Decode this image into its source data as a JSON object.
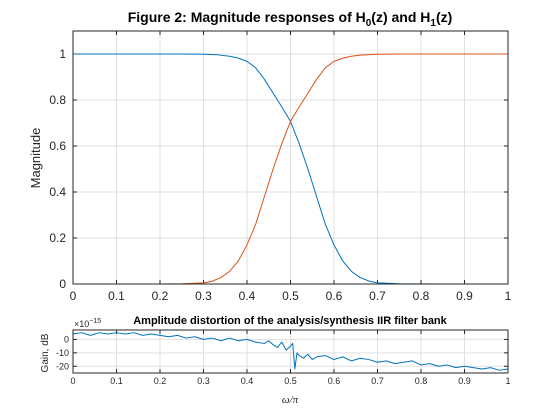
{
  "chart_data": [
    {
      "type": "line",
      "title": "Figure 2: Magnitude responses of H0(z) and H1(z)",
      "title_parts": {
        "a": "Figure 2: Magnitude responses of H",
        "sub0": "0",
        "b": "(z) and H",
        "sub1": "1",
        "c": "(z)"
      },
      "xlabel": "",
      "ylabel": "Magnitude",
      "xlim": [
        0,
        1
      ],
      "ylim": [
        0,
        1.1
      ],
      "grid": true,
      "xticks": [
        "0",
        "0.1",
        "0.2",
        "0.3",
        "0.4",
        "0.5",
        "0.6",
        "0.7",
        "0.8",
        "0.9",
        "1"
      ],
      "yticks": [
        "0",
        "0.2",
        "0.4",
        "0.6",
        "0.8",
        "1"
      ],
      "series": [
        {
          "color": "#0072bd",
          "x": [
            0,
            0.05,
            0.1,
            0.15,
            0.2,
            0.25,
            0.3,
            0.33,
            0.36,
            0.38,
            0.4,
            0.42,
            0.44,
            0.46,
            0.48,
            0.5,
            0.52,
            0.54,
            0.56,
            0.58,
            0.6,
            0.62,
            0.64,
            0.66,
            0.68,
            0.7,
            0.75,
            0.8,
            0.85,
            0.9,
            0.95,
            1
          ],
          "y": [
            1,
            1,
            1,
            1,
            1,
            1,
            0.999,
            0.997,
            0.99,
            0.982,
            0.968,
            0.94,
            0.89,
            0.83,
            0.77,
            0.707,
            0.61,
            0.5,
            0.38,
            0.26,
            0.17,
            0.1,
            0.055,
            0.028,
            0.013,
            0.005,
            0.001,
            0.0003,
            0.0001,
            0,
            0,
            0
          ]
        },
        {
          "color": "#d95319",
          "x": [
            0,
            0.05,
            0.1,
            0.15,
            0.2,
            0.25,
            0.3,
            0.32,
            0.34,
            0.36,
            0.38,
            0.4,
            0.42,
            0.44,
            0.46,
            0.48,
            0.5,
            0.52,
            0.54,
            0.56,
            0.58,
            0.6,
            0.62,
            0.64,
            0.66,
            0.7,
            0.75,
            0.8,
            0.85,
            0.9,
            0.95,
            1
          ],
          "y": [
            0,
            0,
            0,
            0,
            0,
            0.001,
            0.005,
            0.012,
            0.028,
            0.055,
            0.1,
            0.17,
            0.26,
            0.38,
            0.5,
            0.61,
            0.707,
            0.77,
            0.83,
            0.89,
            0.94,
            0.968,
            0.982,
            0.99,
            0.995,
            0.999,
            1,
            1,
            1,
            1,
            1,
            1
          ]
        }
      ]
    },
    {
      "type": "line",
      "title": "Amplitude distortion of the analysis/synthesis IIR filter bank",
      "xlabel": "ω/π",
      "ylabel": "Gain, dB",
      "exponent_label": "×10",
      "exponent_power": "−15",
      "xlim": [
        0,
        1
      ],
      "ylim": [
        -25,
        7
      ],
      "grid": true,
      "xticks": [
        "0",
        "0.1",
        "0.2",
        "0.3",
        "0.4",
        "0.5",
        "0.6",
        "0.7",
        "0.8",
        "0.9",
        "1"
      ],
      "yticks": [
        "0",
        "-10",
        "-20"
      ],
      "series": [
        {
          "color": "#0072bd",
          "x": [
            0,
            0.02,
            0.04,
            0.06,
            0.08,
            0.1,
            0.12,
            0.14,
            0.16,
            0.18,
            0.2,
            0.22,
            0.24,
            0.26,
            0.28,
            0.3,
            0.32,
            0.34,
            0.36,
            0.38,
            0.4,
            0.42,
            0.44,
            0.45,
            0.46,
            0.47,
            0.48,
            0.49,
            0.5,
            0.505,
            0.51,
            0.515,
            0.52,
            0.53,
            0.54,
            0.55,
            0.56,
            0.58,
            0.6,
            0.62,
            0.64,
            0.66,
            0.68,
            0.7,
            0.72,
            0.74,
            0.76,
            0.78,
            0.8,
            0.82,
            0.84,
            0.86,
            0.88,
            0.9,
            0.92,
            0.94,
            0.96,
            0.98,
            1
          ],
          "y": [
            4,
            5,
            3,
            5,
            4,
            5,
            4,
            5,
            3,
            4,
            3,
            2,
            3,
            1,
            2,
            0,
            1,
            -1,
            1,
            -1,
            0,
            -2,
            -3,
            -1,
            -4,
            -6,
            -2,
            -8,
            -5,
            -3,
            -22,
            -10,
            -12,
            -14,
            -11,
            -15,
            -13,
            -12,
            -15,
            -13,
            -16,
            -14,
            -15,
            -17,
            -16,
            -18,
            -17,
            -16,
            -19,
            -18,
            -20,
            -19,
            -21,
            -20,
            -21,
            -22,
            -21,
            -23,
            -22
          ]
        }
      ]
    }
  ]
}
